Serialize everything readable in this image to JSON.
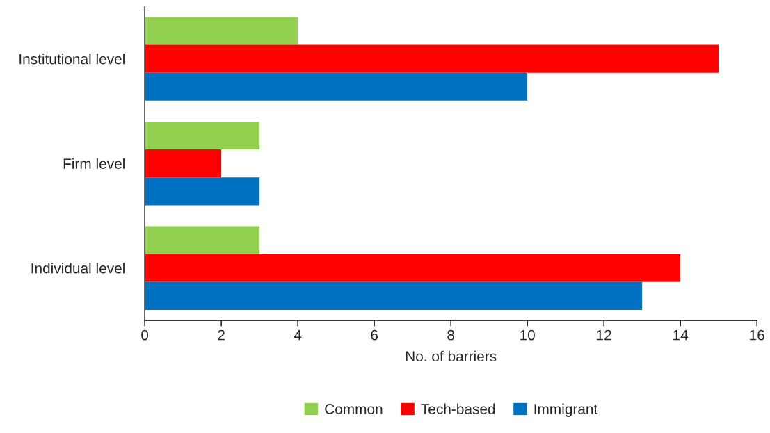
{
  "chart_data": {
    "type": "bar",
    "orientation": "horizontal",
    "xlabel": "No. of barriers",
    "categories": [
      "Institutional level",
      "Firm level",
      "Individual level"
    ],
    "series": [
      {
        "name": "Common",
        "color": "#92d050",
        "values": [
          4,
          3,
          3
        ]
      },
      {
        "name": "Tech-based",
        "color": "#ff0000",
        "values": [
          15,
          2,
          14
        ]
      },
      {
        "name": "Immigrant",
        "color": "#0070c0",
        "values": [
          10,
          3,
          13
        ]
      }
    ],
    "xlim": [
      0,
      16
    ],
    "xticks": [
      0,
      2,
      4,
      6,
      8,
      10,
      12,
      14,
      16
    ],
    "grid": false,
    "legend": "bottom"
  }
}
